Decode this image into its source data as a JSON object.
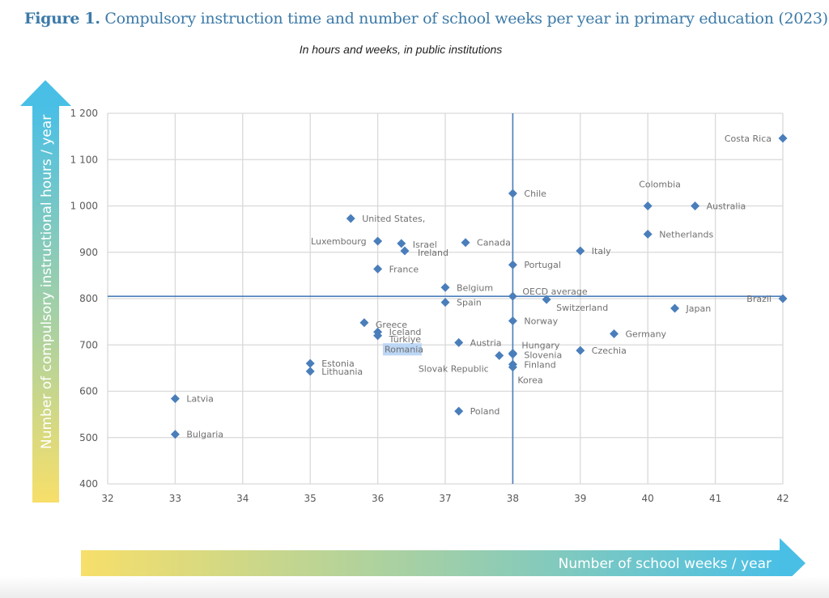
{
  "header": {
    "figure_label": "Figure 1.",
    "title": "Compulsory instruction time and number of school weeks per year in primary education (2023)",
    "subtitle": "In hours and weeks, in public institutions"
  },
  "colors": {
    "title": "#3c7aa8",
    "marker": "#4a7ebb",
    "reference_line": "#4a7ebb",
    "grid": "#d9d9d9",
    "highlight": "#bcd6f5",
    "arrow_start": "#f7df6a",
    "arrow_end": "#49bfe6"
  },
  "chart_data": {
    "type": "scatter",
    "title": "Compulsory instruction time and number of school weeks per year in primary education (2023)",
    "subtitle": "In hours and weeks, in public institutions",
    "xlabel": "Number of school weeks / year",
    "ylabel": "Number of compulsory instructional hours / year",
    "xlim": [
      32,
      42
    ],
    "ylim": [
      400,
      1200
    ],
    "xticks": [
      32,
      33,
      34,
      35,
      36,
      37,
      38,
      39,
      40,
      41,
      42
    ],
    "yticks": [
      400,
      500,
      600,
      700,
      800,
      900,
      1000,
      1100,
      1200
    ],
    "ytick_labels": [
      "400",
      "500",
      "600",
      "700",
      "800",
      "900",
      "1 000",
      "1 100",
      "1 200"
    ],
    "grid": true,
    "reference_lines": {
      "x": 38,
      "y": 805,
      "label": "OECD average"
    },
    "points": [
      {
        "name": "Costa Rica",
        "x": 42,
        "y": 1146,
        "label_side": "left"
      },
      {
        "name": "Chile",
        "x": 38,
        "y": 1027,
        "label_side": "right"
      },
      {
        "name": "Colombia",
        "x": 40,
        "y": 1000,
        "label_side": "above"
      },
      {
        "name": "Australia",
        "x": 40.7,
        "y": 1000,
        "label_side": "right"
      },
      {
        "name": "Netherlands",
        "x": 40,
        "y": 939,
        "label_side": "right"
      },
      {
        "name": "United States,",
        "x": 35.6,
        "y": 973,
        "label_side": "right"
      },
      {
        "name": "Luxembourg",
        "x": 36,
        "y": 924,
        "label_side": "left"
      },
      {
        "name": "Israel",
        "x": 36.35,
        "y": 919,
        "label_side": "right"
      },
      {
        "name": "Ireland",
        "x": 36.4,
        "y": 903,
        "label_side": "right"
      },
      {
        "name": "Canada",
        "x": 37.3,
        "y": 921,
        "label_side": "right"
      },
      {
        "name": "Italy",
        "x": 39,
        "y": 903,
        "label_side": "right"
      },
      {
        "name": "France",
        "x": 36,
        "y": 864,
        "label_side": "right"
      },
      {
        "name": "Portugal",
        "x": 38,
        "y": 873,
        "label_side": "right"
      },
      {
        "name": "Belgium",
        "x": 37,
        "y": 824,
        "label_side": "right"
      },
      {
        "name": "OECD average",
        "x": 38,
        "y": 805,
        "label_side": "right"
      },
      {
        "name": "Spain",
        "x": 37,
        "y": 792,
        "label_side": "right"
      },
      {
        "name": "Switzerland",
        "x": 38.5,
        "y": 798,
        "label_side": "below"
      },
      {
        "name": "Brazil",
        "x": 42,
        "y": 800,
        "label_side": "left"
      },
      {
        "name": "Japan",
        "x": 40.4,
        "y": 779,
        "label_side": "right"
      },
      {
        "name": "Norway",
        "x": 38,
        "y": 752,
        "label_side": "right"
      },
      {
        "name": "Greece",
        "x": 35.8,
        "y": 748,
        "label_side": "right"
      },
      {
        "name": "Iceland",
        "x": 36,
        "y": 728,
        "label_side": "right"
      },
      {
        "name": "Türkiye",
        "x": 36,
        "y": 720,
        "label_side": "right"
      },
      {
        "name": "Germany",
        "x": 39.5,
        "y": 724,
        "label_side": "right"
      },
      {
        "name": "Austria",
        "x": 37.2,
        "y": 705,
        "label_side": "right"
      },
      {
        "name": "Czechia",
        "x": 39,
        "y": 688,
        "label_side": "right"
      },
      {
        "name": "Hungary",
        "x": 38,
        "y": 682,
        "label_side": "right"
      },
      {
        "name": "Slovenia",
        "x": 38,
        "y": 680,
        "label_side": "right"
      },
      {
        "name": "Slovak Republic",
        "x": 37.8,
        "y": 677,
        "label_side": "below-left"
      },
      {
        "name": "Finland",
        "x": 38,
        "y": 658,
        "label_side": "right"
      },
      {
        "name": "Korea",
        "x": 38,
        "y": 652,
        "label_side": "below"
      },
      {
        "name": "Estonia",
        "x": 35,
        "y": 660,
        "label_side": "right"
      },
      {
        "name": "Lithuania",
        "x": 35,
        "y": 643,
        "label_side": "right"
      },
      {
        "name": "Latvia",
        "x": 33,
        "y": 584,
        "label_side": "right"
      },
      {
        "name": "Bulgaria",
        "x": 33,
        "y": 507,
        "label_side": "right"
      },
      {
        "name": "Poland",
        "x": 37.2,
        "y": 557,
        "label_side": "right"
      }
    ],
    "highlighted_label": {
      "name": "Romania",
      "x": 36.1,
      "y": 700,
      "note": "label only, highlighted, no marker"
    }
  }
}
